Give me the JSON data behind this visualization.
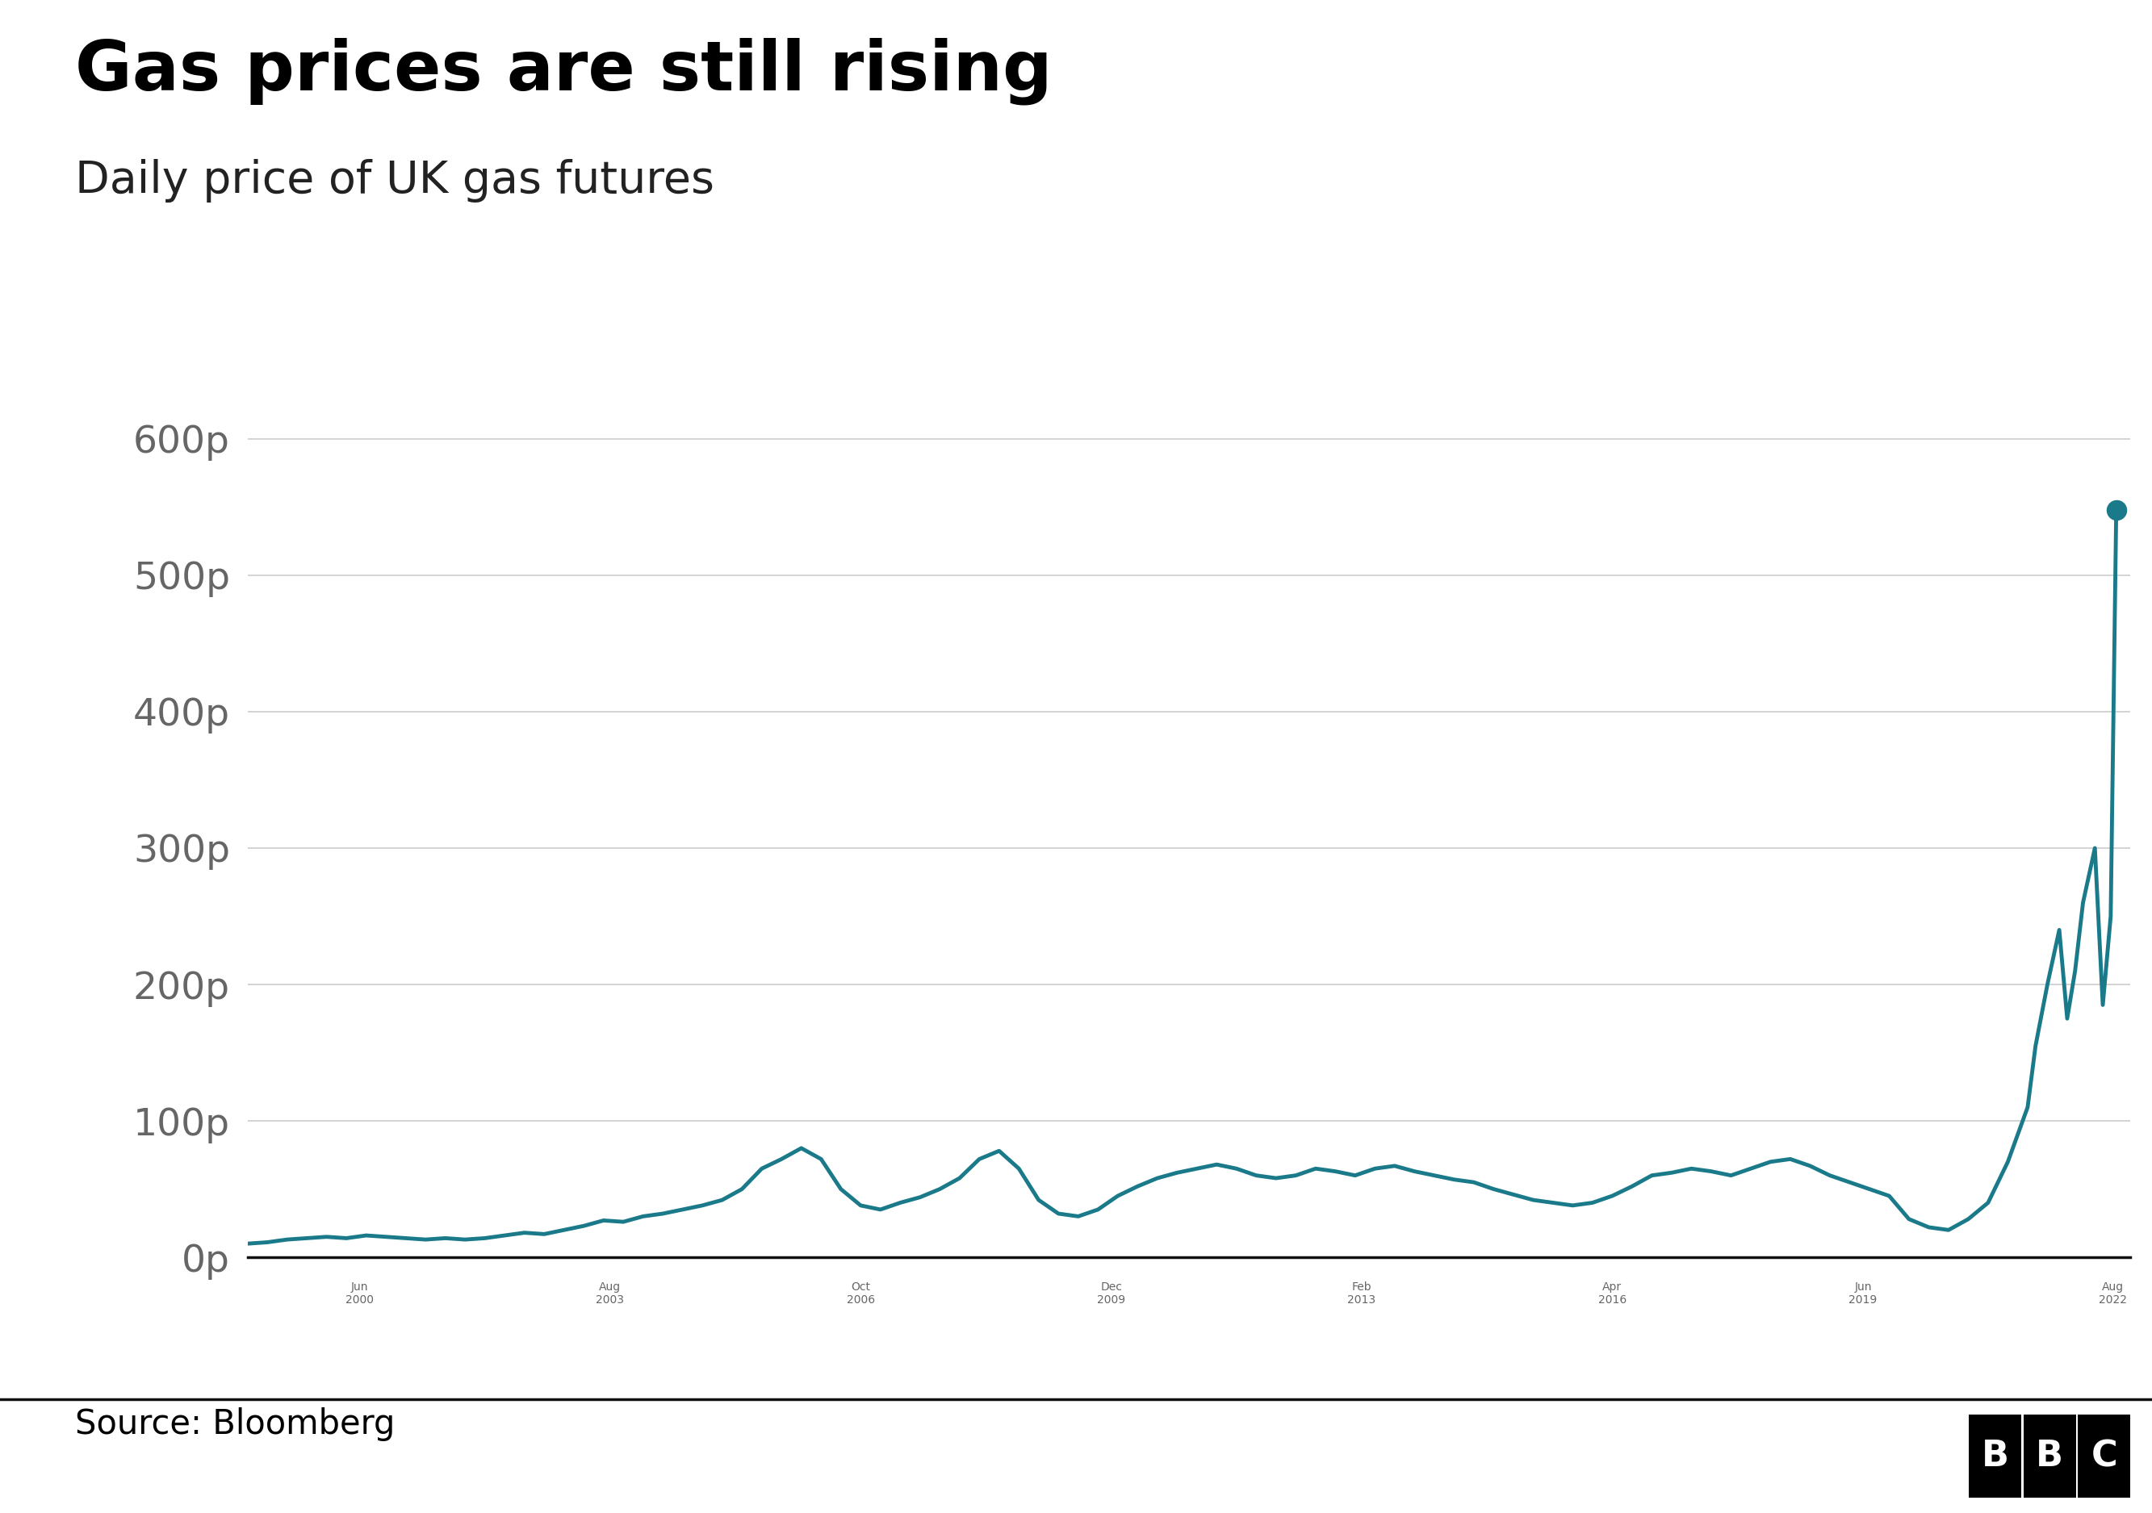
{
  "title": "Gas prices are still rising",
  "subtitle": "Daily price of UK gas futures",
  "source": "Source: Bloomberg",
  "line_color": "#1a7a8a",
  "endpoint_color": "#1a7a8a",
  "background_color": "#ffffff",
  "ytick_labels": [
    "0p",
    "100p",
    "200p",
    "300p",
    "400p",
    "500p",
    "600p"
  ],
  "ytick_values": [
    0,
    100,
    200,
    300,
    400,
    500,
    600
  ],
  "ylim": [
    -10,
    650
  ],
  "title_fontsize": 62,
  "subtitle_fontsize": 40,
  "tick_fontsize": 34,
  "source_fontsize": 30,
  "line_width": 3.5,
  "grid_color": "#cccccc",
  "tick_color": "#666666",
  "xtick_positions": [
    2000.42,
    2003.58,
    2006.75,
    2009.92,
    2013.08,
    2016.25,
    2019.42,
    2022.58
  ],
  "xtick_labels": [
    "Jun\n2000",
    "Aug\n2003",
    "Oct\n2006",
    "Dec\n2009",
    "Feb\n2013",
    "Apr\n2016",
    "Jun\n2019",
    "Aug\n2022"
  ],
  "xlim": [
    1999.0,
    2022.8
  ],
  "data_x": [
    1999.0,
    1999.25,
    1999.5,
    1999.75,
    2000.0,
    2000.25,
    2000.5,
    2000.75,
    2001.0,
    2001.25,
    2001.5,
    2001.75,
    2002.0,
    2002.25,
    2002.5,
    2002.75,
    2003.0,
    2003.25,
    2003.5,
    2003.75,
    2004.0,
    2004.25,
    2004.5,
    2004.75,
    2005.0,
    2005.25,
    2005.5,
    2005.75,
    2006.0,
    2006.25,
    2006.5,
    2006.75,
    2007.0,
    2007.25,
    2007.5,
    2007.75,
    2008.0,
    2008.25,
    2008.5,
    2008.75,
    2009.0,
    2009.25,
    2009.5,
    2009.75,
    2010.0,
    2010.25,
    2010.5,
    2010.75,
    2011.0,
    2011.25,
    2011.5,
    2011.75,
    2012.0,
    2012.25,
    2012.5,
    2012.75,
    2013.0,
    2013.25,
    2013.5,
    2013.75,
    2014.0,
    2014.25,
    2014.5,
    2014.75,
    2015.0,
    2015.25,
    2015.5,
    2015.75,
    2016.0,
    2016.25,
    2016.5,
    2016.75,
    2017.0,
    2017.25,
    2017.5,
    2017.75,
    2018.0,
    2018.25,
    2018.5,
    2018.75,
    2019.0,
    2019.25,
    2019.5,
    2019.75,
    2020.0,
    2020.25,
    2020.5,
    2020.75,
    2021.0,
    2021.25,
    2021.5,
    2021.6,
    2021.75,
    2021.9,
    2022.0,
    2022.1,
    2022.2,
    2022.35,
    2022.45,
    2022.55,
    2022.62
  ],
  "data_y": [
    10,
    11,
    13,
    14,
    15,
    14,
    16,
    15,
    14,
    13,
    14,
    13,
    14,
    16,
    18,
    17,
    20,
    23,
    27,
    26,
    30,
    32,
    35,
    38,
    42,
    50,
    65,
    72,
    80,
    72,
    50,
    38,
    35,
    40,
    44,
    50,
    58,
    72,
    78,
    65,
    42,
    32,
    30,
    35,
    45,
    52,
    58,
    62,
    65,
    68,
    65,
    60,
    58,
    60,
    65,
    63,
    60,
    65,
    67,
    63,
    60,
    57,
    55,
    50,
    46,
    42,
    40,
    38,
    40,
    45,
    52,
    60,
    62,
    65,
    63,
    60,
    65,
    70,
    72,
    67,
    60,
    55,
    50,
    45,
    28,
    22,
    20,
    28,
    40,
    70,
    110,
    155,
    200,
    240,
    175,
    210,
    260,
    300,
    185,
    250,
    548
  ]
}
